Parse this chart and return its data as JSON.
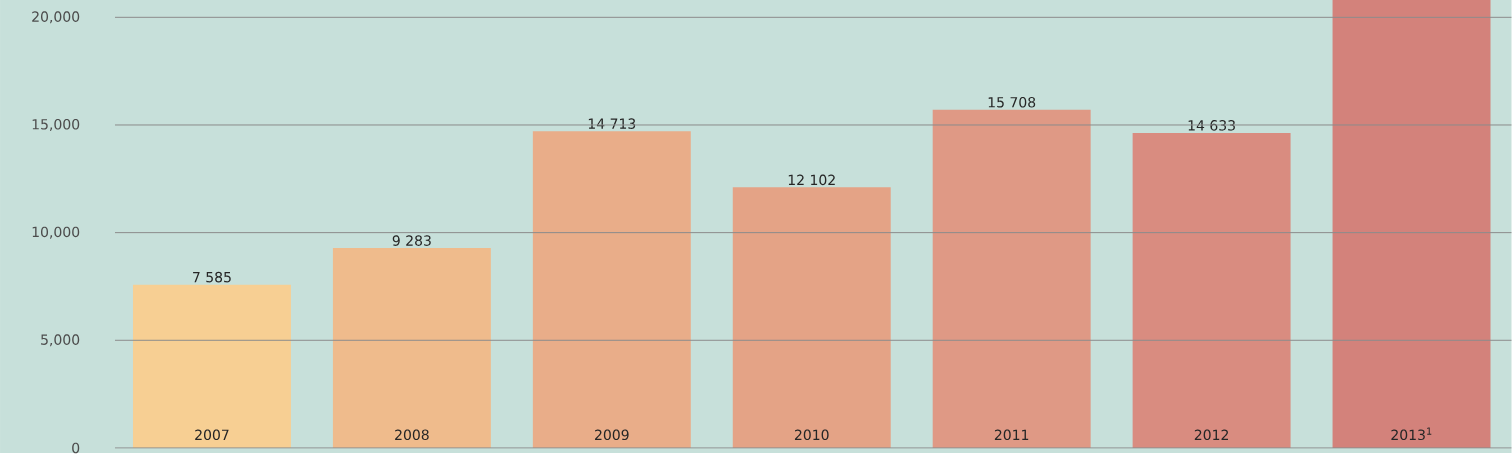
{
  "chart_data": {
    "type": "bar",
    "categories": [
      "2007",
      "2008",
      "2009",
      "2010",
      "2011",
      "2012",
      "2013$^{1}$"
    ],
    "values": [
      7585,
      9283,
      14713,
      12102,
      15708,
      14633,
      20800
    ],
    "value_labels": [
      "7 585",
      "9 283",
      "14 713",
      "12 102",
      "15 708",
      "14 633",
      null
    ],
    "colors": [
      "#f7cf93",
      "#efbb8c",
      "#e9ad89",
      "#e4a386",
      "#df9985",
      "#d98c80",
      "#d3827b"
    ],
    "ylim": [
      0,
      20800
    ],
    "yticks": [
      0,
      {
        "value": 5000,
        "label": "5,000"
      },
      {
        "value": 10000,
        "label": "10,000"
      },
      {
        "value": 15000,
        "label": "15,000"
      },
      {
        "value": 20000,
        "label": "20,000"
      }
    ],
    "grid": "y"
  }
}
